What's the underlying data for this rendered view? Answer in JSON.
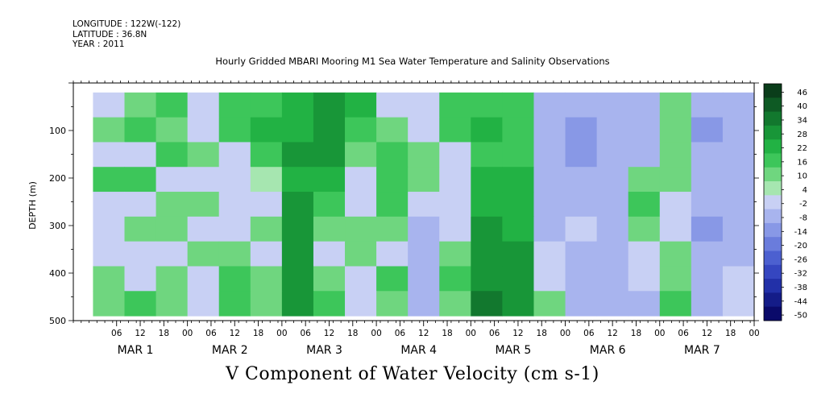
{
  "header": {
    "longitude": "LONGITUDE : 122W(-122)",
    "latitude": "LATITUDE : 36.8N",
    "year": "YEAR : 2011"
  },
  "title": "Hourly Gridded MBARI Mooring M1 Sea Water Temperature and Salinity Observations",
  "caption": "V Component of Water Velocity (cm s-1)",
  "chart_data": {
    "type": "heatmap",
    "title": "Hourly Gridded MBARI Mooring M1 Sea Water Temperature and Salinity Observations",
    "xlabel": "",
    "ylabel": "DEPTH (m)",
    "y_reversed": true,
    "ylim": [
      500,
      0
    ],
    "y_ticks": [
      100,
      200,
      300,
      400,
      500
    ],
    "data_depth_range": [
      20,
      490
    ],
    "x_range_hours": [
      0,
      168
    ],
    "x_hour_ticks": [
      "06",
      "12",
      "18",
      "00",
      "06",
      "12",
      "18",
      "00",
      "06",
      "12",
      "18",
      "00",
      "06",
      "12",
      "18",
      "00",
      "06",
      "12",
      "18",
      "00",
      "06",
      "12",
      "18",
      "00",
      "06",
      "12",
      "18",
      "00"
    ],
    "x_day_labels": [
      "MAR 1",
      "MAR 2",
      "MAR 3",
      "MAR 4",
      "MAR 5",
      "MAR 6",
      "MAR 7"
    ],
    "colorbar": {
      "levels": [
        46,
        40,
        34,
        28,
        22,
        16,
        10,
        4,
        -2,
        -8,
        -14,
        -20,
        -26,
        -32,
        -38,
        -44,
        -50
      ],
      "colors": [
        "#0a3d1a",
        "#0e5a24",
        "#12782e",
        "#189638",
        "#22b244",
        "#3dc65a",
        "#6fd67f",
        "#a6e6b0",
        "#c8d0f4",
        "#a8b4ee",
        "#8898e6",
        "#6a7cdc",
        "#4c60d0",
        "#3546c0",
        "#2230a8",
        "#141c88",
        "#0a0a6a"
      ]
    },
    "series": [
      {
        "values": [
          [
            -6,
            8,
            10,
            -4,
            12,
            14,
            18,
            22,
            16,
            -4,
            -6,
            12,
            14,
            10,
            -10,
            -14,
            -12,
            -12,
            8,
            -14,
            -10
          ],
          [
            8,
            12,
            4,
            -4,
            10,
            16,
            20,
            24,
            14,
            4,
            -4,
            10,
            18,
            12,
            -12,
            -16,
            -14,
            -12,
            6,
            -16,
            -12
          ],
          [
            -4,
            -6,
            10,
            6,
            -6,
            10,
            22,
            26,
            8,
            10,
            4,
            -6,
            14,
            14,
            -14,
            -16,
            -14,
            -12,
            4,
            -14,
            -12
          ],
          [
            10,
            14,
            -6,
            -8,
            -4,
            -2,
            20,
            18,
            -4,
            14,
            8,
            -8,
            16,
            16,
            -12,
            -14,
            -12,
            8,
            6,
            -12,
            -10
          ],
          [
            -6,
            -4,
            8,
            6,
            -6,
            -4,
            22,
            12,
            -6,
            12,
            -6,
            -8,
            20,
            18,
            -10,
            -12,
            -10,
            10,
            -6,
            -14,
            -12
          ],
          [
            -8,
            6,
            4,
            -6,
            -8,
            8,
            24,
            6,
            4,
            8,
            -10,
            -4,
            22,
            20,
            -10,
            -8,
            -10,
            6,
            -8,
            -16,
            -14
          ],
          [
            -6,
            -6,
            -8,
            8,
            6,
            -4,
            22,
            -6,
            6,
            -8,
            -12,
            8,
            24,
            22,
            -8,
            -10,
            -12,
            -6,
            6,
            -12,
            -10
          ],
          [
            6,
            -4,
            8,
            -6,
            10,
            4,
            26,
            8,
            -6,
            10,
            -14,
            10,
            26,
            24,
            -6,
            -12,
            -14,
            -8,
            8,
            -14,
            -8
          ],
          [
            8,
            10,
            6,
            -8,
            12,
            6,
            24,
            10,
            -8,
            8,
            -12,
            8,
            28,
            26,
            8,
            -10,
            -12,
            -10,
            10,
            -12,
            -6
          ]
        ]
      }
    ]
  }
}
